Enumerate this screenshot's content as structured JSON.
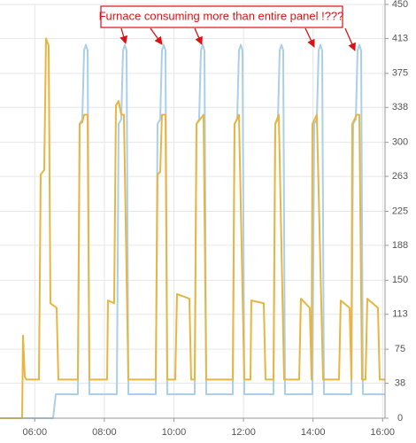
{
  "chart_data": {
    "type": "line",
    "annotation": "Furnace consuming more than entire panel !???",
    "xlim": [
      5,
      16.069
    ],
    "xticks": [
      {
        "value": 6,
        "label": "06:00"
      },
      {
        "value": 8,
        "label": "08:00"
      },
      {
        "value": 10,
        "label": "10:00"
      },
      {
        "value": 12,
        "label": "12:00"
      },
      {
        "value": 14,
        "label": "14:00"
      },
      {
        "value": 16,
        "label": "16:00"
      }
    ],
    "ylim": [
      0,
      450
    ],
    "yticks": [
      0,
      38,
      75,
      113,
      150,
      188,
      225,
      263,
      300,
      338,
      375,
      413,
      450
    ],
    "grid": true,
    "series": [
      {
        "color": "#e8b640",
        "x": [
          5,
          5.636,
          5.662,
          5.712,
          5.763,
          6.12,
          6.17,
          6.272,
          6.323,
          6.399,
          6.45,
          6.628,
          6.679,
          7.239,
          7.29,
          7.366,
          7.417,
          7.519,
          7.57,
          8.079,
          8.104,
          8.282,
          8.333,
          8.41,
          8.486,
          8.562,
          8.69,
          9.478,
          9.529,
          9.606,
          9.656,
          9.758,
          9.809,
          10.038,
          10.089,
          10.445,
          10.496,
          10.598,
          10.649,
          10.751,
          10.852,
          10.929,
          11.692,
          11.743,
          11.87,
          12.023,
          12.201,
          12.226,
          12.583,
          12.634,
          12.863,
          12.913,
          13.015,
          13.168,
          13.601,
          13.651,
          13.906,
          13.957,
          13.982,
          14.109,
          14.288,
          14.746,
          14.796,
          15.051,
          15.102,
          15.127,
          15.254,
          15.331,
          15.407,
          15.509,
          15.56,
          15.865,
          15.916,
          16.069
        ],
        "values": [
          0,
          0,
          90,
          45,
          42,
          42,
          265,
          270,
          413,
          405,
          125,
          120,
          42,
          42,
          320,
          322,
          330,
          330,
          42,
          42,
          128,
          125,
          340,
          345,
          330,
          330,
          42,
          42,
          265,
          268,
          330,
          330,
          42,
          42,
          135,
          130,
          42,
          42,
          320,
          325,
          330,
          42,
          42,
          320,
          330,
          42,
          42,
          128,
          125,
          42,
          42,
          320,
          330,
          42,
          42,
          130,
          120,
          42,
          320,
          330,
          42,
          42,
          128,
          120,
          42,
          320,
          330,
          330,
          42,
          42,
          130,
          120,
          42,
          42
        ]
      },
      {
        "color": "#a9cfe9",
        "x": [
          5,
          6.527,
          6.603,
          7.239,
          7.29,
          7.366,
          7.417,
          7.468,
          7.519,
          7.57,
          8.359,
          8.41,
          8.486,
          8.537,
          8.588,
          8.639,
          8.69,
          9.478,
          9.529,
          9.606,
          9.656,
          9.707,
          9.758,
          9.809,
          10.598,
          10.649,
          10.725,
          10.776,
          10.827,
          10.878,
          10.929,
          11.692,
          11.743,
          11.819,
          11.87,
          11.921,
          11.972,
          12.023,
          12.863,
          12.913,
          12.99,
          13.041,
          13.092,
          13.142,
          13.193,
          13.982,
          14.033,
          14.109,
          14.16,
          14.211,
          14.262,
          14.313,
          15.102,
          15.153,
          15.229,
          15.28,
          15.331,
          15.382,
          15.433,
          16.069
        ],
        "values": [
          0,
          0,
          26,
          26,
          320,
          325,
          400,
          406,
          400,
          26,
          26,
          320,
          325,
          400,
          406,
          400,
          26,
          26,
          320,
          325,
          400,
          406,
          400,
          26,
          26,
          320,
          325,
          400,
          406,
          400,
          26,
          26,
          320,
          325,
          400,
          406,
          400,
          26,
          26,
          320,
          325,
          400,
          406,
          400,
          26,
          26,
          320,
          325,
          400,
          406,
          400,
          26,
          26,
          320,
          325,
          400,
          406,
          400,
          26,
          26
        ]
      }
    ]
  }
}
